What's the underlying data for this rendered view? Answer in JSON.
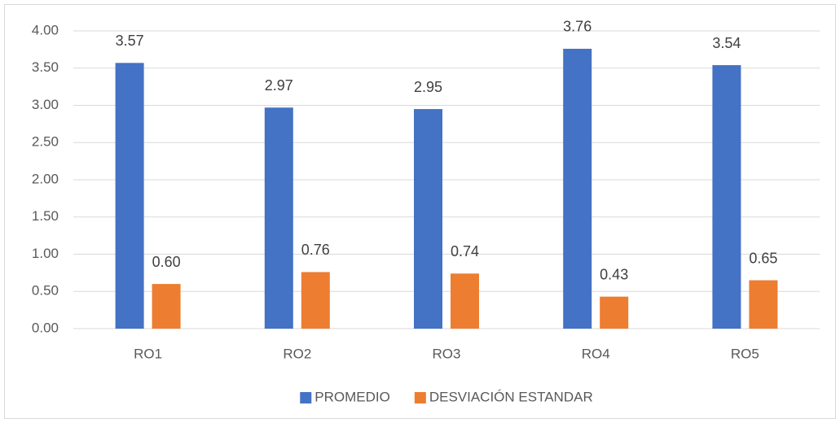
{
  "chart_data": {
    "type": "bar",
    "categories": [
      "RO1",
      "RO2",
      "RO3",
      "RO4",
      "RO5"
    ],
    "series": [
      {
        "name": "PROMEDIO",
        "color": "#4472c4",
        "values": [
          3.57,
          2.97,
          2.95,
          3.76,
          3.54
        ],
        "value_labels": [
          "3.57",
          "2.97",
          "2.95",
          "3.76",
          "3.54"
        ]
      },
      {
        "name": "DESVIACIÓN ESTANDAR",
        "color": "#ed7d31",
        "values": [
          0.6,
          0.76,
          0.74,
          0.43,
          0.65
        ],
        "value_labels": [
          "0.60",
          "0.76",
          "0.74",
          "0.43",
          "0.65"
        ]
      }
    ],
    "ylim": [
      0,
      4
    ],
    "yticks": [
      {
        "value": 0,
        "label": "0.00"
      },
      {
        "value": 0.5,
        "label": "0.50"
      },
      {
        "value": 1,
        "label": "1.00"
      },
      {
        "value": 1.5,
        "label": "1.50"
      },
      {
        "value": 2,
        "label": "2.00"
      },
      {
        "value": 2.5,
        "label": "2.50"
      },
      {
        "value": 3,
        "label": "3.00"
      },
      {
        "value": 3.5,
        "label": "3.50"
      },
      {
        "value": 4,
        "label": "4.00"
      }
    ],
    "grid": true,
    "legend": "bottom"
  }
}
